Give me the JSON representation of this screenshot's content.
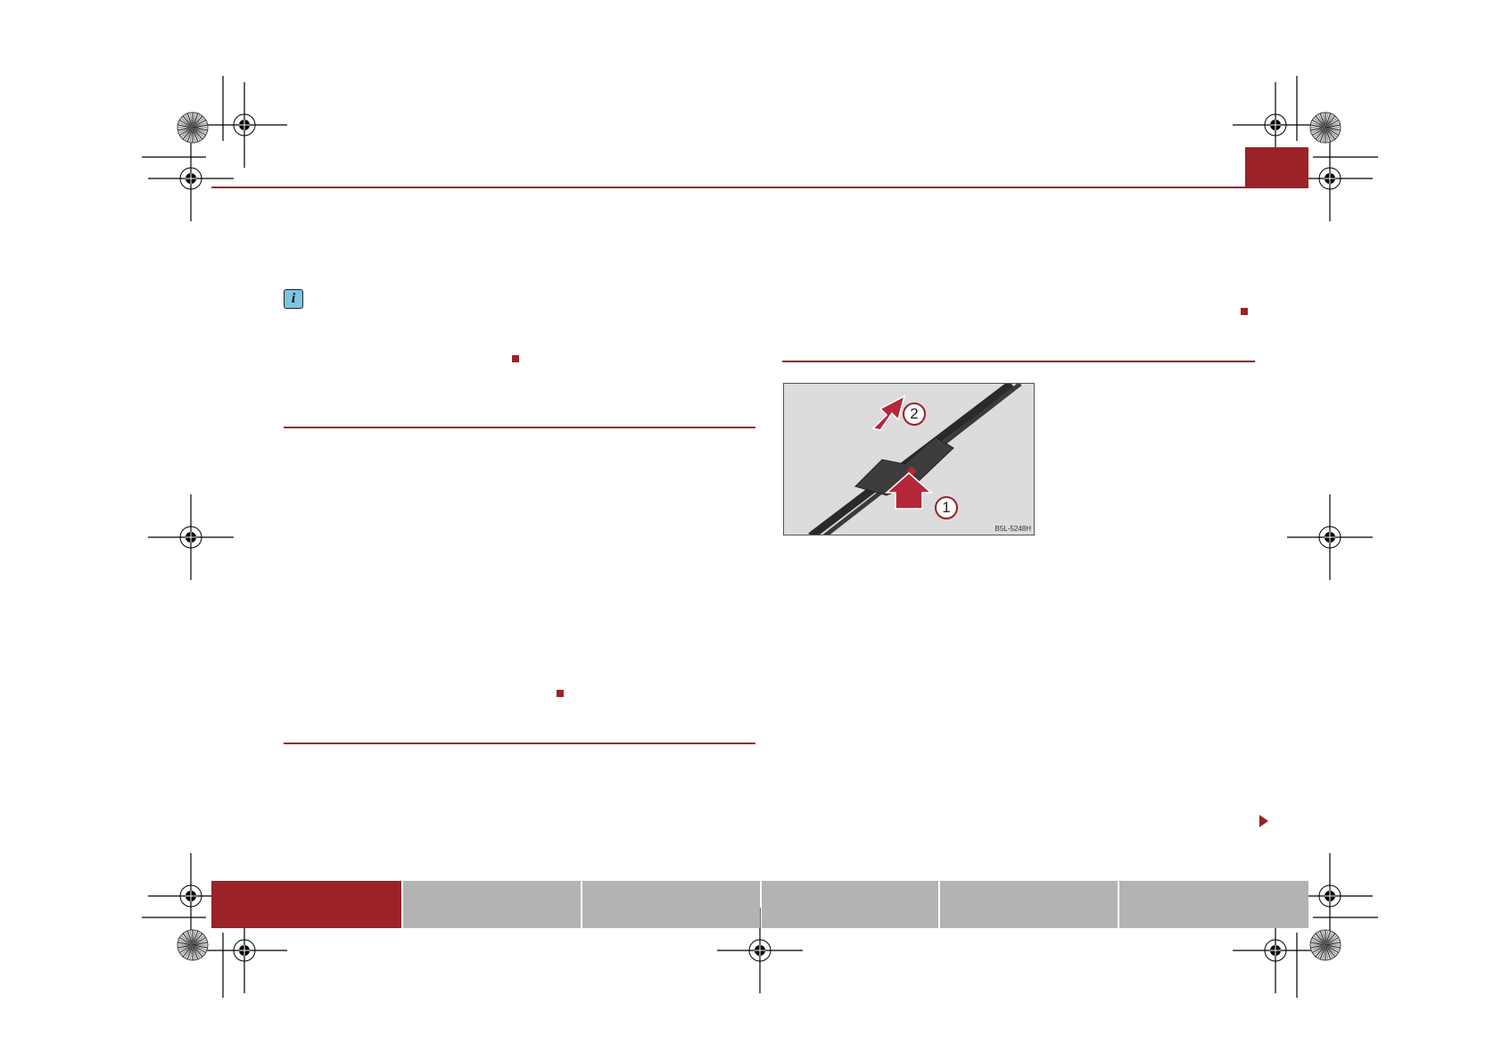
{
  "colors": {
    "accent": "#9b2226",
    "tab_inactive": "#b3b3b3",
    "figure_bg": "#dcdcdc"
  },
  "header": {
    "chapter_marker_color": "#9b2226"
  },
  "icons": {
    "info": "info-icon",
    "continue": "triangle-right-icon",
    "section_end": "square-icon"
  },
  "figure": {
    "code": "B5L-5248H",
    "callouts": [
      "1",
      "2"
    ]
  },
  "footer": {
    "tabs": [
      {
        "active": true
      },
      {
        "active": false
      },
      {
        "active": false
      },
      {
        "active": false
      },
      {
        "active": false
      },
      {
        "active": false
      }
    ]
  }
}
